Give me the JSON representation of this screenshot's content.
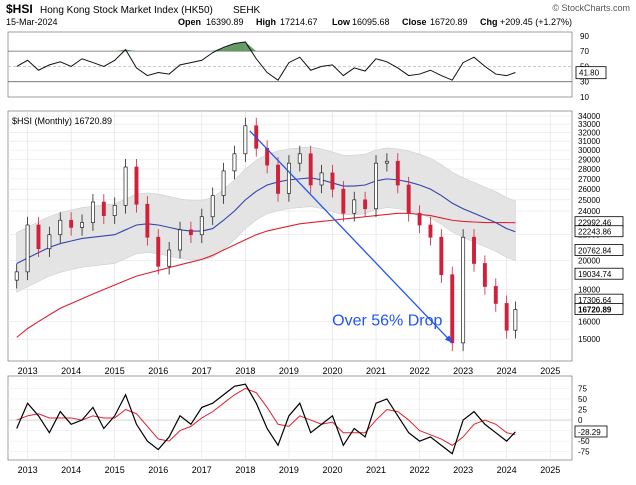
{
  "header": {
    "symbol": "$HSI",
    "name": "Hong Kong Stock Market Index (HK50)",
    "exchange": "SEHK",
    "date": "15-Mar-2024",
    "open_label": "Open",
    "open": "16390.89",
    "high_label": "High",
    "high": "17214.67",
    "low_label": "Low",
    "low": "16095.68",
    "close_label": "Close",
    "close": "16720.89",
    "chg_label": "Chg",
    "chg": "+209.45 (+1.27%)",
    "watermark": "© StockCharts.com"
  },
  "colors": {
    "up_candle": "#222222",
    "down_candle": "#d0203a",
    "ma_blue": "#3344aa",
    "ma_red": "#dd2233",
    "band": "#e4e4e4",
    "rsi_fill_high": "#4a8a4a",
    "rsi_fill_low": "#8a3a3a",
    "arrow": "#2255ee",
    "macd_signal": "#dd2233",
    "macd_line": "#000000"
  },
  "chart_data": [
    {
      "panel": "rsi",
      "type": "line",
      "current_value": "41.80",
      "ylim": [
        10,
        95
      ],
      "y_ticks": [
        90,
        70,
        50,
        30,
        10
      ],
      "reference_lines": [
        70,
        30
      ],
      "x": [
        2012.75,
        2013.0,
        2013.25,
        2013.5,
        2013.75,
        2014.0,
        2014.25,
        2014.5,
        2014.75,
        2015.0,
        2015.25,
        2015.5,
        2015.75,
        2016.0,
        2016.25,
        2016.5,
        2016.75,
        2017.0,
        2017.25,
        2017.5,
        2017.75,
        2018.0,
        2018.25,
        2018.5,
        2018.75,
        2019.0,
        2019.25,
        2019.5,
        2019.75,
        2020.0,
        2020.25,
        2020.5,
        2020.75,
        2021.0,
        2021.25,
        2021.5,
        2021.75,
        2022.0,
        2022.25,
        2022.5,
        2022.75,
        2023.0,
        2023.25,
        2023.5,
        2023.75,
        2024.0,
        2024.2
      ],
      "values": [
        50,
        58,
        45,
        52,
        56,
        50,
        60,
        55,
        50,
        58,
        72,
        48,
        38,
        42,
        40,
        52,
        55,
        58,
        68,
        75,
        80,
        82,
        60,
        42,
        32,
        55,
        62,
        45,
        50,
        52,
        38,
        48,
        44,
        60,
        56,
        48,
        38,
        40,
        45,
        38,
        32,
        55,
        62,
        50,
        40,
        38,
        42
      ]
    },
    {
      "panel": "price",
      "type": "candlestick",
      "title": "$HSI (Monthly) 16720.89",
      "ylim": [
        14000,
        34000
      ],
      "y_ticks": [
        34000,
        33000,
        32000,
        31000,
        30000,
        29000,
        28000,
        27000,
        26000,
        25000,
        24000,
        22000,
        20000,
        18000,
        16000,
        15000
      ],
      "y_tick_labels": [
        "34000",
        "33000",
        "32000",
        "31000",
        "30000",
        "29000",
        "28000",
        "27000",
        "26000",
        "25000",
        "24000",
        "22000",
        "20000",
        "18000",
        "16000",
        "15000"
      ],
      "price_labels": [
        {
          "value": 22992.46,
          "text": "22992.46"
        },
        {
          "value": 22243.86,
          "text": "22243.86"
        },
        {
          "value": 20762.84,
          "text": "20762.84"
        },
        {
          "value": 19034.74,
          "text": "19034.74"
        },
        {
          "value": 17306.64,
          "text": "17306.64"
        },
        {
          "value": 16720.89,
          "text": "16720.89"
        }
      ],
      "x_ticks": [
        "2013",
        "2014",
        "2015",
        "2016",
        "2017",
        "2018",
        "2019",
        "2020",
        "2021",
        "2022",
        "2023",
        "2024",
        "2025"
      ],
      "x": [
        2012.75,
        2013.0,
        2013.25,
        2013.5,
        2013.75,
        2014.0,
        2014.25,
        2014.5,
        2014.75,
        2015.0,
        2015.25,
        2015.5,
        2015.75,
        2016.0,
        2016.25,
        2016.5,
        2016.75,
        2017.0,
        2017.25,
        2017.5,
        2017.75,
        2018.0,
        2018.25,
        2018.5,
        2018.75,
        2019.0,
        2019.25,
        2019.5,
        2019.75,
        2020.0,
        2020.25,
        2020.5,
        2020.75,
        2021.0,
        2021.25,
        2021.5,
        2021.75,
        2022.0,
        2022.25,
        2022.5,
        2022.75,
        2023.0,
        2023.25,
        2023.5,
        2023.75,
        2024.0,
        2024.2
      ],
      "close": [
        19200,
        22800,
        20900,
        22000,
        23200,
        22600,
        23000,
        24800,
        23600,
        24500,
        28200,
        24600,
        21800,
        19600,
        20800,
        22400,
        22000,
        23500,
        25400,
        27800,
        29600,
        32800,
        30200,
        28400,
        25600,
        28600,
        29600,
        26400,
        27600,
        26000,
        23800,
        25000,
        24200,
        28600,
        28800,
        26400,
        23800,
        22800,
        21800,
        19000,
        14800,
        21800,
        19800,
        18200,
        17100,
        15500,
        16720
      ],
      "ma_blue": [
        19800,
        20200,
        20600,
        21000,
        21300,
        21500,
        21700,
        21800,
        21900,
        22000,
        22400,
        22800,
        22900,
        22800,
        22600,
        22400,
        22300,
        22300,
        22500,
        23200,
        24000,
        25000,
        25800,
        26400,
        26700,
        26900,
        27000,
        27100,
        26900,
        26600,
        26300,
        26300,
        26400,
        26800,
        27000,
        26900,
        26700,
        26400,
        26000,
        25400,
        24700,
        24200,
        23800,
        23400,
        23000,
        22500,
        22243
      ],
      "ma_red": [
        15100,
        15600,
        16000,
        16400,
        16800,
        17100,
        17400,
        17700,
        18000,
        18300,
        18600,
        18900,
        19100,
        19300,
        19500,
        19700,
        19900,
        20100,
        20400,
        20800,
        21200,
        21600,
        22000,
        22300,
        22500,
        22700,
        22900,
        23000,
        23100,
        23200,
        23300,
        23400,
        23500,
        23600,
        23700,
        23800,
        23800,
        23700,
        23600,
        23400,
        23200,
        23100,
        23050,
        23000,
        23000,
        23000,
        22992
      ],
      "annotations": [
        {
          "text": "Over 56% Drop",
          "x": 2022.8,
          "y": 15900
        }
      ],
      "trendline": {
        "x1": 2018.1,
        "y1": 32200,
        "x2": 2022.75,
        "y2": 14800
      }
    },
    {
      "panel": "macd",
      "type": "line",
      "current_value": "-28.29",
      "ylim": [
        -90,
        95
      ],
      "y_ticks": [
        75,
        50,
        25,
        0,
        -25,
        -50,
        -75
      ],
      "x": [
        2012.75,
        2013.0,
        2013.25,
        2013.5,
        2013.75,
        2014.0,
        2014.25,
        2014.5,
        2014.75,
        2015.0,
        2015.25,
        2015.5,
        2015.75,
        2016.0,
        2016.25,
        2016.5,
        2016.75,
        2017.0,
        2017.25,
        2017.5,
        2017.75,
        2018.0,
        2018.25,
        2018.5,
        2018.75,
        2019.0,
        2019.25,
        2019.5,
        2019.75,
        2020.0,
        2020.25,
        2020.5,
        2020.75,
        2021.0,
        2021.25,
        2021.5,
        2021.75,
        2022.0,
        2022.25,
        2022.5,
        2022.75,
        2023.0,
        2023.25,
        2023.5,
        2023.75,
        2024.0,
        2024.2
      ],
      "series": [
        {
          "values": [
            -20,
            40,
            10,
            -30,
            20,
            -10,
            0,
            30,
            -20,
            10,
            60,
            -10,
            -50,
            -70,
            -40,
            10,
            -10,
            30,
            40,
            60,
            80,
            85,
            40,
            -20,
            -60,
            10,
            40,
            -30,
            -10,
            10,
            -60,
            -20,
            -40,
            40,
            50,
            10,
            -30,
            -50,
            -40,
            -60,
            -80,
            0,
            20,
            -10,
            -30,
            -50,
            -28
          ]
        },
        {
          "values": [
            0,
            10,
            15,
            5,
            5,
            5,
            0,
            10,
            5,
            5,
            25,
            15,
            -15,
            -45,
            -50,
            -25,
            -15,
            5,
            20,
            40,
            60,
            75,
            65,
            30,
            -10,
            -15,
            10,
            0,
            -10,
            -5,
            -30,
            -30,
            -30,
            0,
            25,
            20,
            0,
            -25,
            -35,
            -45,
            -60,
            -40,
            -10,
            0,
            -10,
            -30,
            -35
          ]
        }
      ],
      "x_ticks": [
        "2013",
        "2014",
        "2015",
        "2016",
        "2017",
        "2018",
        "2019",
        "2020",
        "2021",
        "2022",
        "2023",
        "2024",
        "2025"
      ]
    }
  ]
}
